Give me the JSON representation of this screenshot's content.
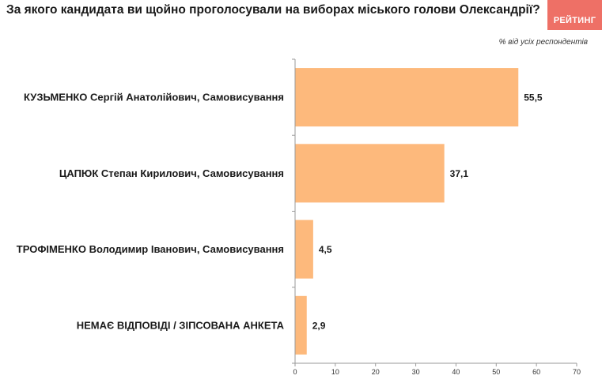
{
  "header": {
    "title": "За якого кандидата ви щойно проголосували на виборах міського голови Олександрії?",
    "logo_text": "РЕЙТИНГ",
    "logo_color": "#ee7066"
  },
  "chart_data": {
    "type": "bar",
    "orientation": "horizontal",
    "title": "За якого кандидата ви щойно проголосували на виборах міського голови Олександрії?",
    "subtitle": "% від усіх респондентів",
    "categories": [
      "КУЗЬМЕНКО Сергій Анатолійович, Самовисування",
      "ЦАПЮК Степан Кирилович, Самовисування",
      "ТРОФІМЕНКО Володимир Іванович, Самовисування",
      "НЕМАЄ ВІДПОВІДІ / ЗІПСОВАНА АНКЕТА"
    ],
    "values": [
      55.5,
      37.1,
      4.5,
      2.9
    ],
    "value_labels": [
      "55,5",
      "37,1",
      "4,5",
      "2,9"
    ],
    "xlim": [
      0,
      70
    ],
    "xticks": [
      0,
      10,
      20,
      30,
      40,
      50,
      60,
      70
    ],
    "bar_color": "#fdb97c",
    "grid": false,
    "legend": "none"
  }
}
